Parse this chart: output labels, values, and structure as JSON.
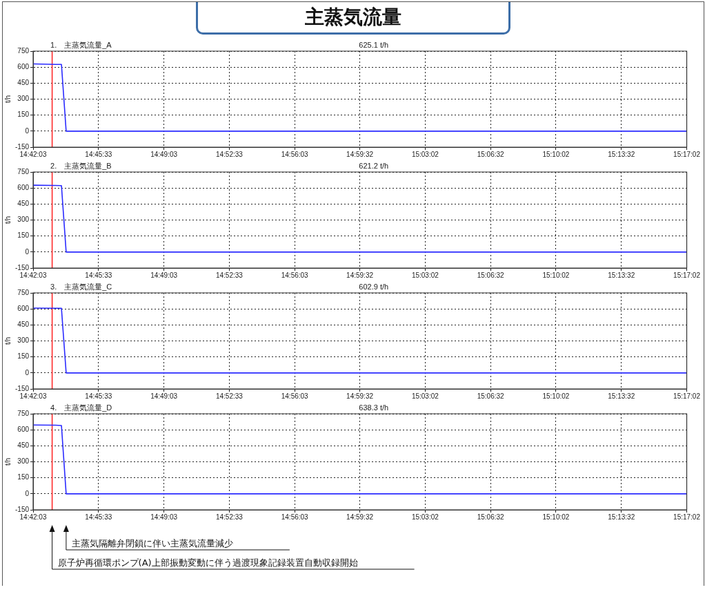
{
  "chart_data": [
    {
      "type": "line",
      "title": "主蒸気流量",
      "subtitle": "1.　主蒸気流量_A",
      "annotations": [
        "625.1 t/h"
      ],
      "ylabel": "t/h",
      "series": [
        {
          "color": "#2b2bff",
          "x": [
            14.700833,
            14.7208,
            14.7261,
            14.7303,
            15.283889
          ],
          "values": [
            630,
            625,
            625,
            0,
            0
          ]
        }
      ],
      "xlim": [
        14.700833,
        15.283889
      ],
      "xticks": [
        {
          "value": 14.700833,
          "label": "14:42:03"
        },
        {
          "value": 14.759167,
          "label": "14:45:33"
        },
        {
          "value": 14.8175,
          "label": "14:49:03"
        },
        {
          "value": 14.875833,
          "label": "14:52:33"
        },
        {
          "value": 14.934167,
          "label": "14:56:03"
        },
        {
          "value": 14.992222,
          "label": "14:59:32"
        },
        {
          "value": 15.050556,
          "label": "15:03:02"
        },
        {
          "value": 15.108889,
          "label": "15:06:32"
        },
        {
          "value": 15.167222,
          "label": "15:10:02"
        },
        {
          "value": 15.225556,
          "label": "15:13:32"
        },
        {
          "value": 15.283889,
          "label": "15:17:02"
        }
      ],
      "ylim": [
        -150,
        750
      ],
      "yticks": [
        -150,
        0,
        150,
        300,
        450,
        600,
        750
      ],
      "grid": true,
      "marker": "none",
      "line_style": "solid",
      "legend": false,
      "ref_lines": [
        {
          "axis": "x",
          "value": 14.7178,
          "color": "#ff2020"
        }
      ]
    },
    {
      "type": "line",
      "subtitle": "2.　主蒸気流量_B",
      "annotations": [
        "621.2 t/h"
      ],
      "ylabel": "t/h",
      "series": [
        {
          "color": "#2b2bff",
          "x": [
            14.700833,
            14.7208,
            14.7261,
            14.7303,
            15.283889
          ],
          "values": [
            626,
            624,
            622,
            0,
            0
          ]
        }
      ],
      "xlim": [
        14.700833,
        15.283889
      ],
      "xticks": [
        {
          "value": 14.700833,
          "label": "14:42:03"
        },
        {
          "value": 14.759167,
          "label": "14:45:33"
        },
        {
          "value": 14.8175,
          "label": "14:49:03"
        },
        {
          "value": 14.875833,
          "label": "14:52:33"
        },
        {
          "value": 14.934167,
          "label": "14:56:03"
        },
        {
          "value": 14.992222,
          "label": "14:59:32"
        },
        {
          "value": 15.050556,
          "label": "15:03:02"
        },
        {
          "value": 15.108889,
          "label": "15:06:32"
        },
        {
          "value": 15.167222,
          "label": "15:10:02"
        },
        {
          "value": 15.225556,
          "label": "15:13:32"
        },
        {
          "value": 15.283889,
          "label": "15:17:02"
        }
      ],
      "ylim": [
        -150,
        750
      ],
      "yticks": [
        -150,
        0,
        150,
        300,
        450,
        600,
        750
      ],
      "grid": true,
      "marker": "none",
      "line_style": "solid",
      "legend": false,
      "ref_lines": [
        {
          "axis": "x",
          "value": 14.7178,
          "color": "#ff2020"
        }
      ]
    },
    {
      "type": "line",
      "subtitle": "3.　主蒸気流量_C",
      "annotations": [
        "602.9 t/h"
      ],
      "ylabel": "t/h",
      "series": [
        {
          "color": "#2b2bff",
          "x": [
            14.700833,
            14.7208,
            14.7261,
            14.7303,
            15.283889
          ],
          "values": [
            608,
            606,
            605,
            0,
            0
          ]
        }
      ],
      "xlim": [
        14.700833,
        15.283889
      ],
      "xticks": [
        {
          "value": 14.700833,
          "label": "14:42:03"
        },
        {
          "value": 14.759167,
          "label": "14:45:33"
        },
        {
          "value": 14.8175,
          "label": "14:49:03"
        },
        {
          "value": 14.875833,
          "label": "14:52:33"
        },
        {
          "value": 14.934167,
          "label": "14:56:03"
        },
        {
          "value": 14.992222,
          "label": "14:59:32"
        },
        {
          "value": 15.050556,
          "label": "15:03:02"
        },
        {
          "value": 15.108889,
          "label": "15:06:32"
        },
        {
          "value": 15.167222,
          "label": "15:10:02"
        },
        {
          "value": 15.225556,
          "label": "15:13:32"
        },
        {
          "value": 15.283889,
          "label": "15:17:02"
        }
      ],
      "ylim": [
        -150,
        750
      ],
      "yticks": [
        -150,
        0,
        150,
        300,
        450,
        600,
        750
      ],
      "grid": true,
      "marker": "none",
      "line_style": "solid",
      "legend": false,
      "ref_lines": [
        {
          "axis": "x",
          "value": 14.7178,
          "color": "#ff2020"
        }
      ]
    },
    {
      "type": "line",
      "subtitle": "4.　主蒸気流量_D",
      "ylabel": "t/h",
      "annotations": [
        "638.3 t/h",
        "主蒸気隔離弁閉鎖に伴い主蒸気流量減少",
        "原子炉再循環ポンプ(A)上部振動変動に伴う過渡現象記録装置自動収録開始"
      ],
      "series": [
        {
          "color": "#2b2bff",
          "x": [
            14.700833,
            14.7208,
            14.7261,
            14.7303,
            15.283889
          ],
          "values": [
            645,
            643,
            640,
            0,
            0
          ]
        }
      ],
      "xlim": [
        14.700833,
        15.283889
      ],
      "xticks": [
        {
          "value": 14.700833,
          "label": "14:42:03"
        },
        {
          "value": 14.759167,
          "label": "14:45:33"
        },
        {
          "value": 14.8175,
          "label": "14:49:03"
        },
        {
          "value": 14.875833,
          "label": "14:52:33"
        },
        {
          "value": 14.934167,
          "label": "14:56:03"
        },
        {
          "value": 14.992222,
          "label": "14:59:32"
        },
        {
          "value": 15.050556,
          "label": "15:03:02"
        },
        {
          "value": 15.108889,
          "label": "15:06:32"
        },
        {
          "value": 15.167222,
          "label": "15:10:02"
        },
        {
          "value": 15.225556,
          "label": "15:13:32"
        },
        {
          "value": 15.283889,
          "label": "15:17:02"
        }
      ],
      "ylim": [
        -150,
        750
      ],
      "yticks": [
        -150,
        0,
        150,
        300,
        450,
        600,
        750
      ],
      "grid": true,
      "marker": "none",
      "line_style": "solid",
      "legend": false,
      "ref_lines": [
        {
          "axis": "x",
          "value": 14.7178,
          "color": "#ff2020"
        }
      ]
    }
  ]
}
